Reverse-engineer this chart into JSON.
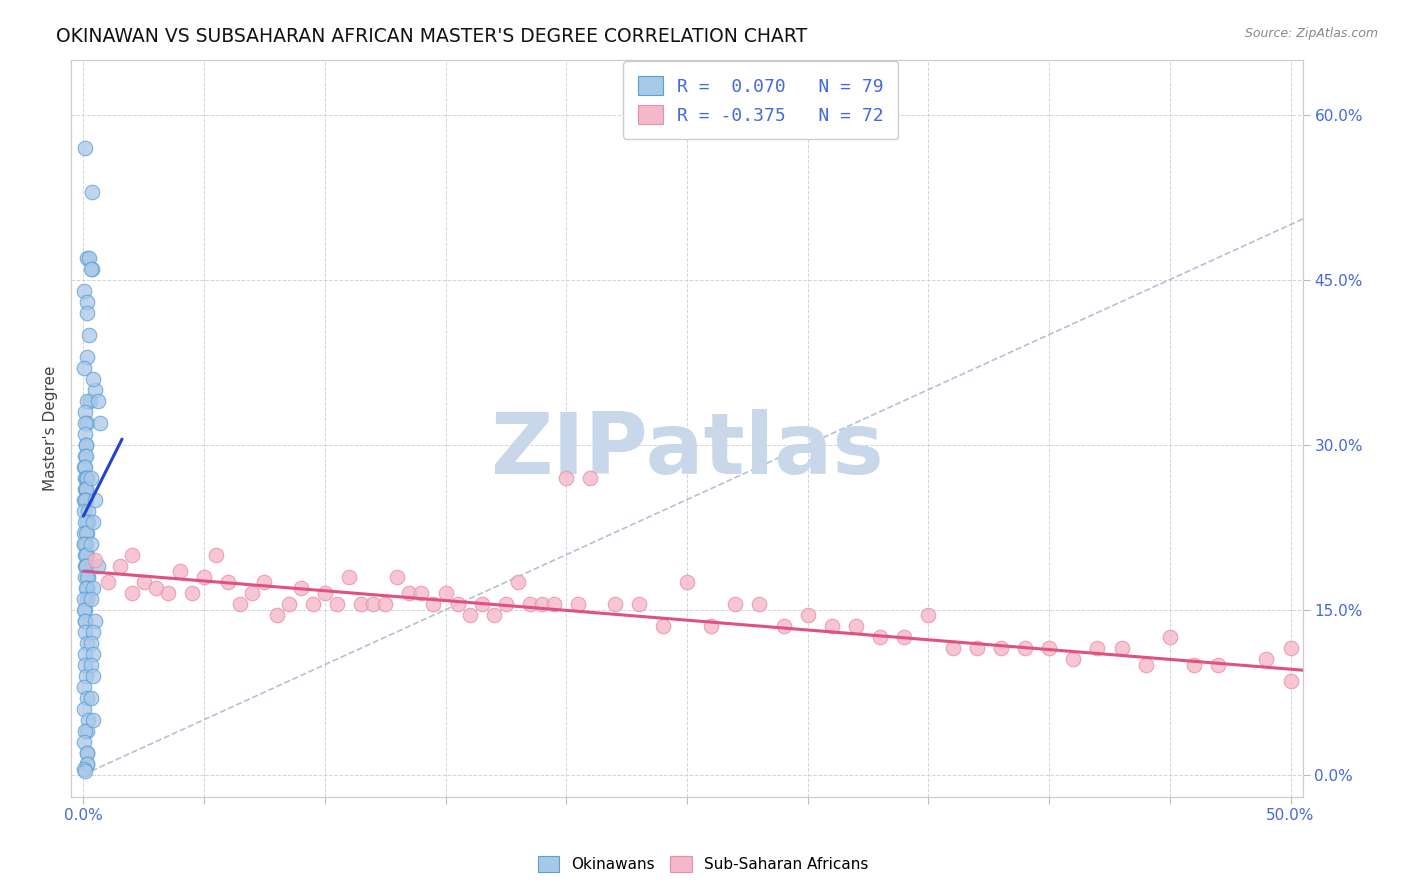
{
  "title": "OKINAWAN VS SUBSAHARAN AFRICAN MASTER'S DEGREE CORRELATION CHART",
  "source_text": "Source: ZipAtlas.com",
  "ylabel": "Master's Degree",
  "xlim": [
    -0.005,
    0.505
  ],
  "ylim": [
    -0.02,
    0.65
  ],
  "xtick_positions": [
    0.0,
    0.05,
    0.1,
    0.15,
    0.2,
    0.25,
    0.3,
    0.35,
    0.4,
    0.45,
    0.5
  ],
  "xtick_labels": [
    "0.0%",
    "",
    "",
    "",
    "",
    "",
    "",
    "",
    "",
    "",
    "50.0%"
  ],
  "ytick_positions": [
    0.0,
    0.15,
    0.3,
    0.45,
    0.6
  ],
  "ytick_labels": [
    "0.0%",
    "15.0%",
    "30.0%",
    "45.0%",
    "60.0%"
  ],
  "background_color": "#ffffff",
  "grid_color": "#d0d0d0",
  "okinawan_color": "#a8c8e8",
  "okinawan_edge": "#5a9fd4",
  "subsaharan_color": "#f4b8c8",
  "subsaharan_edge": "#e890a8",
  "trend_okinawan_color": "#2244cc",
  "trend_subsaharan_color": "#e05080",
  "diag_line_color": "#aabbd0",
  "tick_color": "#4169e1",
  "legend_line1": "R =  0.070   N = 79",
  "legend_line2": "R = -0.375   N = 72",
  "watermark": "ZIPatlas",
  "watermark_color": "#c8d8ea",
  "okinawan_x": [
    0.001,
    0.003,
    0.001,
    0.002,
    0.004,
    0.001,
    0.002,
    0.001,
    0.002,
    0.001,
    0.001,
    0.002,
    0.001,
    0.001,
    0.002,
    0.001,
    0.001,
    0.001,
    0.001,
    0.001,
    0.001,
    0.001,
    0.001,
    0.001,
    0.001,
    0.001,
    0.001,
    0.001,
    0.001,
    0.001,
    0.001,
    0.001,
    0.001,
    0.001,
    0.001,
    0.001,
    0.001,
    0.001,
    0.001,
    0.001,
    0.001,
    0.001,
    0.001,
    0.001,
    0.001,
    0.001,
    0.001,
    0.001,
    0.001,
    0.001,
    0.001,
    0.001,
    0.001,
    0.001,
    0.001,
    0.001,
    0.001,
    0.001,
    0.001,
    0.001,
    0.001,
    0.001,
    0.001,
    0.001,
    0.001,
    0.001,
    0.001,
    0.001,
    0.001,
    0.001,
    0.001,
    0.001,
    0.001,
    0.001,
    0.001,
    0.001,
    0.001,
    0.001,
    0.001
  ],
  "okinawan_y": [
    0.57,
    0.53,
    0.47,
    0.47,
    0.46,
    0.44,
    0.43,
    0.42,
    0.4,
    0.38,
    0.37,
    0.34,
    0.34,
    0.33,
    0.32,
    0.32,
    0.31,
    0.3,
    0.3,
    0.29,
    0.29,
    0.28,
    0.28,
    0.27,
    0.27,
    0.27,
    0.26,
    0.26,
    0.26,
    0.25,
    0.25,
    0.25,
    0.24,
    0.24,
    0.23,
    0.23,
    0.23,
    0.22,
    0.22,
    0.22,
    0.21,
    0.21,
    0.21,
    0.2,
    0.2,
    0.2,
    0.19,
    0.19,
    0.19,
    0.18,
    0.18,
    0.18,
    0.17,
    0.17,
    0.17,
    0.16,
    0.16,
    0.15,
    0.15,
    0.14,
    0.14,
    0.13,
    0.12,
    0.11,
    0.1,
    0.09,
    0.08,
    0.07,
    0.06,
    0.05,
    0.04,
    0.04,
    0.03,
    0.02,
    0.02,
    0.01,
    0.01,
    0.005,
    0.003
  ],
  "okinawan_extra_x": [
    0.003,
    0.005,
    0.004,
    0.006,
    0.007,
    0.003,
    0.005,
    0.004,
    0.003,
    0.006,
    0.004,
    0.003,
    0.005,
    0.004,
    0.003,
    0.004,
    0.003,
    0.004,
    0.003,
    0.004
  ],
  "okinawan_extra_y": [
    0.46,
    0.35,
    0.36,
    0.34,
    0.32,
    0.27,
    0.25,
    0.23,
    0.21,
    0.19,
    0.17,
    0.16,
    0.14,
    0.13,
    0.12,
    0.11,
    0.1,
    0.09,
    0.07,
    0.05
  ],
  "subsaharan_x": [
    0.005,
    0.01,
    0.015,
    0.02,
    0.02,
    0.025,
    0.03,
    0.035,
    0.04,
    0.045,
    0.05,
    0.055,
    0.06,
    0.065,
    0.07,
    0.075,
    0.08,
    0.085,
    0.09,
    0.095,
    0.1,
    0.105,
    0.11,
    0.115,
    0.12,
    0.125,
    0.13,
    0.135,
    0.14,
    0.145,
    0.15,
    0.155,
    0.16,
    0.165,
    0.17,
    0.175,
    0.18,
    0.185,
    0.19,
    0.195,
    0.2,
    0.205,
    0.21,
    0.22,
    0.23,
    0.24,
    0.25,
    0.26,
    0.27,
    0.28,
    0.29,
    0.3,
    0.31,
    0.32,
    0.33,
    0.34,
    0.35,
    0.36,
    0.37,
    0.38,
    0.39,
    0.4,
    0.41,
    0.42,
    0.43,
    0.44,
    0.45,
    0.46,
    0.47,
    0.49,
    0.5,
    0.5
  ],
  "subsaharan_y": [
    0.195,
    0.175,
    0.19,
    0.2,
    0.165,
    0.175,
    0.17,
    0.165,
    0.185,
    0.165,
    0.18,
    0.2,
    0.175,
    0.155,
    0.165,
    0.175,
    0.145,
    0.155,
    0.17,
    0.155,
    0.165,
    0.155,
    0.18,
    0.155,
    0.155,
    0.155,
    0.18,
    0.165,
    0.165,
    0.155,
    0.165,
    0.155,
    0.145,
    0.155,
    0.145,
    0.155,
    0.175,
    0.155,
    0.155,
    0.155,
    0.27,
    0.155,
    0.27,
    0.155,
    0.155,
    0.135,
    0.175,
    0.135,
    0.155,
    0.155,
    0.135,
    0.145,
    0.135,
    0.135,
    0.125,
    0.125,
    0.145,
    0.115,
    0.115,
    0.115,
    0.115,
    0.115,
    0.105,
    0.115,
    0.115,
    0.1,
    0.125,
    0.1,
    0.1,
    0.105,
    0.115,
    0.085
  ],
  "ok_trend_x": [
    0.0,
    0.016
  ],
  "ok_trend_y": [
    0.235,
    0.305
  ],
  "ss_trend_x": [
    0.0,
    0.505
  ],
  "ss_trend_y": [
    0.185,
    0.095
  ]
}
